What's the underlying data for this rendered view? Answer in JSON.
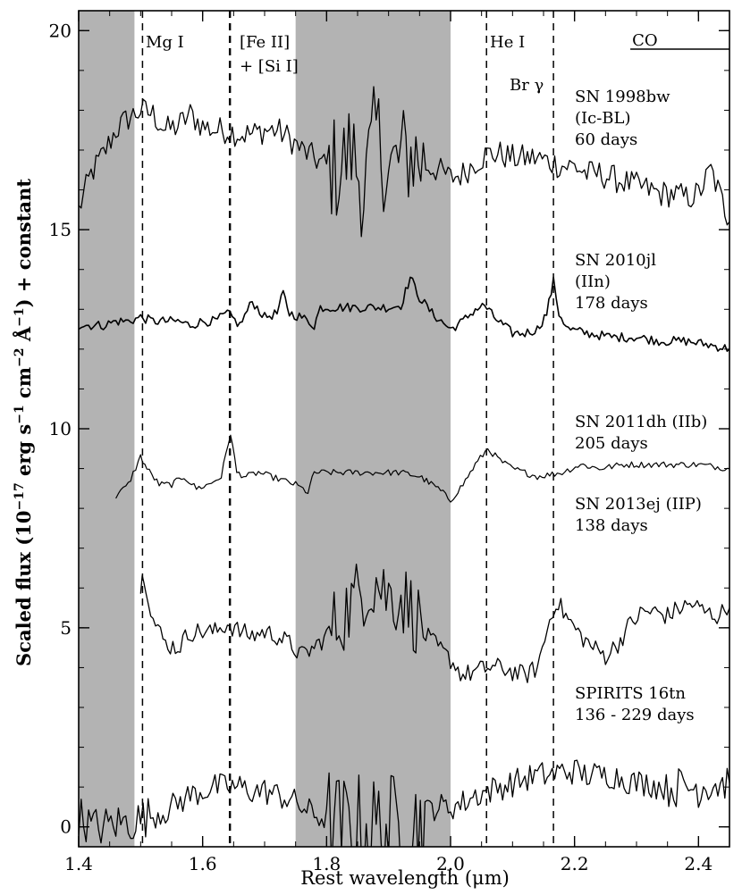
{
  "chart_data": {
    "type": "line",
    "xlabel": "Rest wavelength (μm)",
    "ylabel_parts": [
      "Scaled flux (10",
      "−17",
      " erg s",
      "−1",
      " cm",
      "−2",
      " Å",
      "−1",
      ") + constant"
    ],
    "xlim": [
      1.4,
      2.45
    ],
    "ylim": [
      -0.5,
      20.5
    ],
    "x_ticks": [
      1.4,
      1.6,
      1.8,
      2.0,
      2.2,
      2.4
    ],
    "x_tick_labels": [
      "1.4",
      "1.6",
      "1.8",
      "2.0",
      "2.2",
      "2.4"
    ],
    "y_ticks": [
      0,
      5,
      10,
      15,
      20
    ],
    "y_tick_labels": [
      "0",
      "5",
      "10",
      "15",
      "20"
    ],
    "grid": false,
    "shaded_regions": [
      [
        1.4,
        1.49
      ],
      [
        1.75,
        2.0
      ]
    ],
    "line_markers": [
      {
        "x": 1.503,
        "label": "Mg I"
      },
      {
        "x": 1.644,
        "label": "[Fe II]"
      },
      {
        "x": 2.058,
        "label": "He I"
      },
      {
        "x": 2.166,
        "label": "Br γ"
      }
    ],
    "extra_label": "+ [Si I]",
    "co_band": {
      "x0": 2.29,
      "x1": 2.45,
      "label": "CO"
    },
    "series": [
      {
        "name": "SN 1998bw",
        "label_lines": [
          "SN 1998bw",
          "(Ic-BL)",
          "60 days"
        ],
        "x": [
          1.4,
          1.42,
          1.44,
          1.46,
          1.48,
          1.5,
          1.52,
          1.54,
          1.56,
          1.58,
          1.6,
          1.62,
          1.64,
          1.66,
          1.68,
          1.7,
          1.72,
          1.74,
          1.76,
          1.78,
          1.8,
          1.82,
          1.84,
          1.86,
          1.88,
          1.9,
          1.92,
          1.94,
          1.96,
          1.98,
          2.0,
          2.02,
          2.04,
          2.06,
          2.08,
          2.1,
          2.12,
          2.14,
          2.16,
          2.18,
          2.2,
          2.22,
          2.24,
          2.26,
          2.28,
          2.3,
          2.32,
          2.34,
          2.36,
          2.38,
          2.4,
          2.42,
          2.45
        ],
        "y": [
          15.5,
          16.4,
          16.9,
          17.5,
          17.8,
          18.0,
          17.9,
          17.5,
          17.6,
          17.9,
          17.6,
          17.5,
          17.5,
          17.4,
          17.4,
          17.5,
          17.5,
          17.3,
          17.0,
          16.8,
          16.6,
          16.5,
          17.0,
          16.0,
          17.5,
          16.4,
          16.8,
          16.9,
          16.6,
          16.5,
          16.3,
          16.4,
          16.7,
          16.9,
          16.9,
          16.8,
          16.8,
          16.8,
          16.7,
          16.6,
          16.6,
          16.4,
          16.4,
          16.3,
          16.2,
          16.1,
          16.0,
          15.9,
          15.9,
          15.8,
          15.9,
          16.5,
          15.2
        ]
      },
      {
        "name": "SN 2010jl",
        "label_lines": [
          "SN 2010jl",
          "(IIn)",
          "178 days"
        ],
        "x": [
          1.4,
          1.42,
          1.44,
          1.46,
          1.48,
          1.5,
          1.52,
          1.54,
          1.56,
          1.58,
          1.6,
          1.62,
          1.64,
          1.66,
          1.68,
          1.7,
          1.72,
          1.73,
          1.74,
          1.76,
          1.78,
          1.79,
          1.85,
          1.9,
          1.92,
          1.935,
          1.95,
          1.97,
          2.0,
          2.02,
          2.04,
          2.055,
          2.07,
          2.1,
          2.12,
          2.14,
          2.155,
          2.166,
          2.175,
          2.19,
          2.22,
          2.26,
          2.3,
          2.34,
          2.38,
          2.42,
          2.45
        ],
        "y": [
          12.6,
          12.6,
          12.6,
          12.7,
          12.7,
          12.8,
          12.7,
          12.7,
          12.7,
          12.6,
          12.7,
          12.7,
          12.9,
          12.6,
          13.2,
          12.8,
          12.9,
          13.4,
          12.9,
          12.8,
          12.6,
          13.05,
          13.05,
          13.05,
          13.1,
          13.8,
          13.3,
          12.9,
          12.5,
          12.7,
          13.0,
          13.1,
          12.8,
          12.4,
          12.4,
          12.5,
          12.9,
          13.7,
          12.9,
          12.5,
          12.4,
          12.3,
          12.3,
          12.2,
          12.2,
          12.1,
          12.0
        ]
      },
      {
        "name": "SN 2011dh",
        "label_lines": [
          "SN 2011dh (IIb)",
          "205 days"
        ],
        "x": [
          1.46,
          1.48,
          1.5,
          1.51,
          1.53,
          1.55,
          1.57,
          1.59,
          1.61,
          1.63,
          1.645,
          1.655,
          1.67,
          1.69,
          1.71,
          1.73,
          1.75,
          1.77,
          1.78,
          1.85,
          1.92,
          1.95,
          1.98,
          2.0,
          2.02,
          2.04,
          2.06,
          2.08,
          2.1,
          2.14,
          2.18,
          2.21,
          2.24,
          2.28,
          2.32,
          2.36,
          2.4,
          2.45
        ],
        "y": [
          8.3,
          8.6,
          9.3,
          9.0,
          8.6,
          8.6,
          8.8,
          8.5,
          8.6,
          8.8,
          9.9,
          8.9,
          8.8,
          8.9,
          8.8,
          8.7,
          8.6,
          8.4,
          8.9,
          8.9,
          8.9,
          8.8,
          8.5,
          8.2,
          8.6,
          9.1,
          9.5,
          9.2,
          9.0,
          8.8,
          8.9,
          9.1,
          9.0,
          9.1,
          9.1,
          9.1,
          9.1,
          9.0
        ]
      },
      {
        "name": "SN 2013ej",
        "label_lines": [
          "SN 2013ej (IIP)",
          "138 days"
        ],
        "x": [
          1.5,
          1.505,
          1.52,
          1.54,
          1.56,
          1.58,
          1.6,
          1.62,
          1.64,
          1.66,
          1.68,
          1.7,
          1.72,
          1.74,
          1.76,
          1.78,
          1.8,
          1.82,
          1.84,
          1.86,
          1.88,
          1.9,
          1.92,
          1.94,
          1.96,
          1.98,
          2.0,
          2.02,
          2.04,
          2.06,
          2.08,
          2.1,
          2.12,
          2.14,
          2.16,
          2.17,
          2.19,
          2.21,
          2.23,
          2.25,
          2.27,
          2.29,
          2.31,
          2.33,
          2.35,
          2.37,
          2.39,
          2.41,
          2.43,
          2.45
        ],
        "y": [
          6.0,
          6.4,
          5.2,
          4.6,
          4.5,
          4.9,
          4.9,
          4.9,
          5.1,
          4.9,
          4.8,
          4.9,
          4.8,
          4.6,
          4.3,
          4.5,
          4.8,
          5.2,
          5.6,
          6.0,
          6.2,
          5.8,
          5.8,
          5.4,
          4.8,
          4.5,
          4.2,
          3.8,
          3.9,
          4.0,
          4.0,
          3.9,
          3.8,
          4.0,
          5.2,
          5.7,
          5.2,
          4.8,
          4.5,
          4.3,
          4.6,
          5.1,
          5.4,
          5.4,
          5.3,
          5.5,
          5.6,
          5.4,
          5.3,
          5.5
        ]
      },
      {
        "name": "SPIRITS 16tn",
        "label_lines": [
          "SPIRITS 16tn",
          "136 - 229 days"
        ],
        "x": [
          1.4,
          1.42,
          1.44,
          1.46,
          1.48,
          1.5,
          1.52,
          1.54,
          1.56,
          1.58,
          1.6,
          1.62,
          1.64,
          1.66,
          1.68,
          1.7,
          1.72,
          1.74,
          1.76,
          1.78,
          1.8,
          1.82,
          1.84,
          1.86,
          1.88,
          1.9,
          1.92,
          1.94,
          1.97,
          2.0,
          2.02,
          2.04,
          2.06,
          2.08,
          2.1,
          2.12,
          2.14,
          2.16,
          2.18,
          2.2,
          2.22,
          2.24,
          2.26,
          2.28,
          2.3,
          2.32,
          2.34,
          2.36,
          2.38,
          2.4,
          2.42,
          2.45
        ],
        "y": [
          0.3,
          0.0,
          0.0,
          0.1,
          0.1,
          0.2,
          0.3,
          0.4,
          0.6,
          0.8,
          0.9,
          1.0,
          1.0,
          1.0,
          0.9,
          0.9,
          0.8,
          0.7,
          0.5,
          0.3,
          0.2,
          0.0,
          0.0,
          0.0,
          0.0,
          0.0,
          0.0,
          0.0,
          0.5,
          0.5,
          0.6,
          0.8,
          0.9,
          1.0,
          1.1,
          1.2,
          1.3,
          1.3,
          1.4,
          1.4,
          1.3,
          1.3,
          1.3,
          1.2,
          1.1,
          1.1,
          1.0,
          1.0,
          1.0,
          1.0,
          1.1,
          1.1
        ]
      }
    ]
  }
}
